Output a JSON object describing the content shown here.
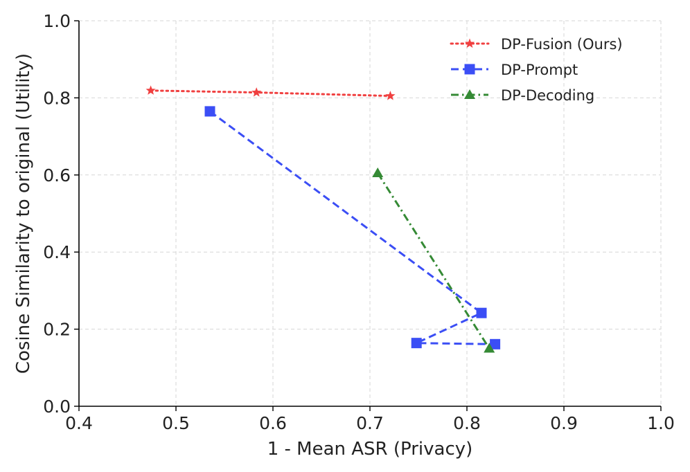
{
  "chart_data": {
    "type": "line",
    "title": "",
    "xlabel": "1 - Mean ASR (Privacy)",
    "ylabel": "Cosine Similarity to original (Utility)",
    "xlim": [
      0.4,
      1.0
    ],
    "ylim": [
      0.0,
      1.0
    ],
    "grid": true,
    "legend_position": "top-right",
    "x_ticks": [
      0.4,
      0.5,
      0.6,
      0.7,
      0.8,
      0.9,
      1.0
    ],
    "x_tick_labels": [
      "0.4",
      "0.5",
      "0.6",
      "0.7",
      "0.8",
      "0.9",
      "1.0"
    ],
    "y_ticks": [
      0.0,
      0.2,
      0.4,
      0.6,
      0.8,
      1.0
    ],
    "y_tick_labels": [
      "0.0",
      "0.2",
      "0.4",
      "0.6",
      "0.8",
      "1.0"
    ],
    "series": [
      {
        "name": "DP-Fusion (Ours)",
        "color": "#f04040",
        "line_style": "dotted",
        "marker": "star",
        "points": [
          [
            0.474,
            0.819
          ],
          [
            0.583,
            0.814
          ],
          [
            0.721,
            0.805
          ]
        ]
      },
      {
        "name": "DP-Prompt",
        "color": "#3b4ef5",
        "line_style": "dashed",
        "marker": "square",
        "points": [
          [
            0.535,
            0.765
          ],
          [
            0.815,
            0.242
          ],
          [
            0.748,
            0.164
          ],
          [
            0.829,
            0.161
          ]
        ]
      },
      {
        "name": "DP-Decoding",
        "color": "#358a35",
        "line_style": "dashdot",
        "marker": "triangle",
        "points": [
          [
            0.708,
            0.605
          ],
          [
            0.823,
            0.15
          ]
        ]
      }
    ]
  }
}
